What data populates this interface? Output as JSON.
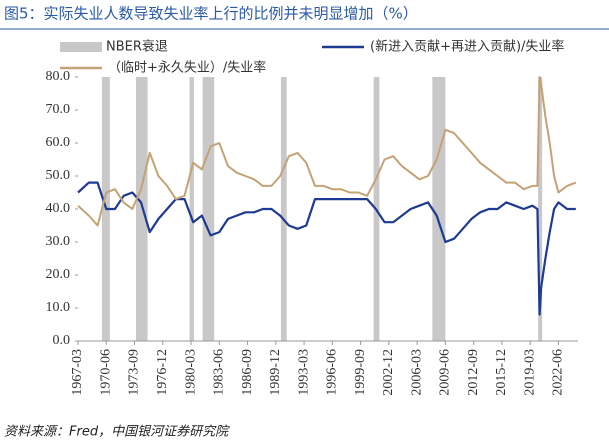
{
  "chart_data": {
    "type": "line",
    "title": "图5：实际失业人数导致失业率上行的比例并未明显增加（%）",
    "source": "资料来源：Fred，中国银河证券研究院",
    "recession_label": "NBER衰退",
    "recession_color": "#c8c8c8",
    "recessions": [
      [
        "1969-12",
        "1970-11"
      ],
      [
        "1973-11",
        "1975-03"
      ],
      [
        "1980-01",
        "1980-07"
      ],
      [
        "1981-07",
        "1982-11"
      ],
      [
        "1990-07",
        "1991-03"
      ],
      [
        "2001-03",
        "2001-11"
      ],
      [
        "2007-12",
        "2009-06"
      ],
      [
        "2020-02",
        "2020-04"
      ]
    ],
    "x": [
      "1967-03",
      "1968-06",
      "1969-06",
      "1970-06",
      "1971-06",
      "1972-06",
      "1973-06",
      "1974-06",
      "1975-06",
      "1976-06",
      "1977-06",
      "1978-06",
      "1979-06",
      "1980-06",
      "1981-06",
      "1982-06",
      "1983-06",
      "1984-06",
      "1985-06",
      "1986-06",
      "1987-06",
      "1988-06",
      "1989-06",
      "1990-06",
      "1991-06",
      "1992-06",
      "1993-06",
      "1994-06",
      "1995-06",
      "1996-06",
      "1997-06",
      "1998-06",
      "1999-06",
      "2000-06",
      "2001-06",
      "2002-06",
      "2003-06",
      "2004-06",
      "2005-06",
      "2006-06",
      "2007-06",
      "2008-06",
      "2009-06",
      "2010-06",
      "2011-06",
      "2012-06",
      "2013-06",
      "2014-06",
      "2015-06",
      "2016-06",
      "2017-06",
      "2018-06",
      "2019-06",
      "2020-01",
      "2020-04",
      "2020-06",
      "2020-12",
      "2021-06",
      "2021-12",
      "2022-06",
      "2023-06",
      "2024-06"
    ],
    "series": [
      {
        "name": "(新进入贡献+再进入贡献)/失业率",
        "color": "#1f3a93",
        "values": [
          45,
          48,
          48,
          40,
          40,
          44,
          45,
          42,
          33,
          37,
          40,
          43,
          43,
          36,
          38,
          32,
          33,
          37,
          38,
          39,
          39,
          40,
          40,
          38,
          35,
          34,
          35,
          43,
          43,
          43,
          43,
          43,
          43,
          43,
          40,
          36,
          36,
          38,
          40,
          41,
          42,
          38,
          30,
          31,
          34,
          37,
          39,
          40,
          40,
          42,
          41,
          40,
          41,
          40,
          8,
          16,
          25,
          33,
          40,
          42,
          40,
          40
        ]
      },
      {
        "name": "（临时+永久失业）/失业率",
        "color": "#c4a276",
        "values": [
          41,
          38,
          35,
          45,
          46,
          42,
          40,
          46,
          57,
          50,
          47,
          43,
          44,
          54,
          52,
          59,
          60,
          53,
          51,
          50,
          49,
          47,
          47,
          50,
          56,
          57,
          54,
          47,
          47,
          46,
          46,
          45,
          45,
          44,
          49,
          55,
          56,
          53,
          51,
          49,
          50,
          55,
          64,
          63,
          60,
          57,
          54,
          52,
          50,
          48,
          48,
          46,
          47,
          47,
          80,
          78,
          68,
          60,
          50,
          45,
          47,
          48
        ]
      }
    ],
    "xlim": [
      "1967-03",
      "2024-09"
    ],
    "xticks": [
      "1967-03",
      "1970-06",
      "1973-09",
      "1976-12",
      "1980-03",
      "1983-06",
      "1986-09",
      "1989-12",
      "1993-03",
      "1996-06",
      "1999-09",
      "2002-12",
      "2006-03",
      "2009-06",
      "2012-09",
      "2015-12",
      "2019-03",
      "2022-06"
    ],
    "ylim": [
      0,
      80
    ],
    "yticks": [
      {
        "value": 0,
        "label": "0.0"
      },
      {
        "value": 10,
        "label": "10.0"
      },
      {
        "value": 20,
        "label": "20.0"
      },
      {
        "value": 30,
        "label": "30.0"
      },
      {
        "value": 40,
        "label": "40.0"
      },
      {
        "value": 50,
        "label": "50.0"
      },
      {
        "value": 60,
        "label": "60.0"
      },
      {
        "value": 70,
        "label": "70.0"
      },
      {
        "value": 80,
        "label": "80.0"
      }
    ]
  }
}
